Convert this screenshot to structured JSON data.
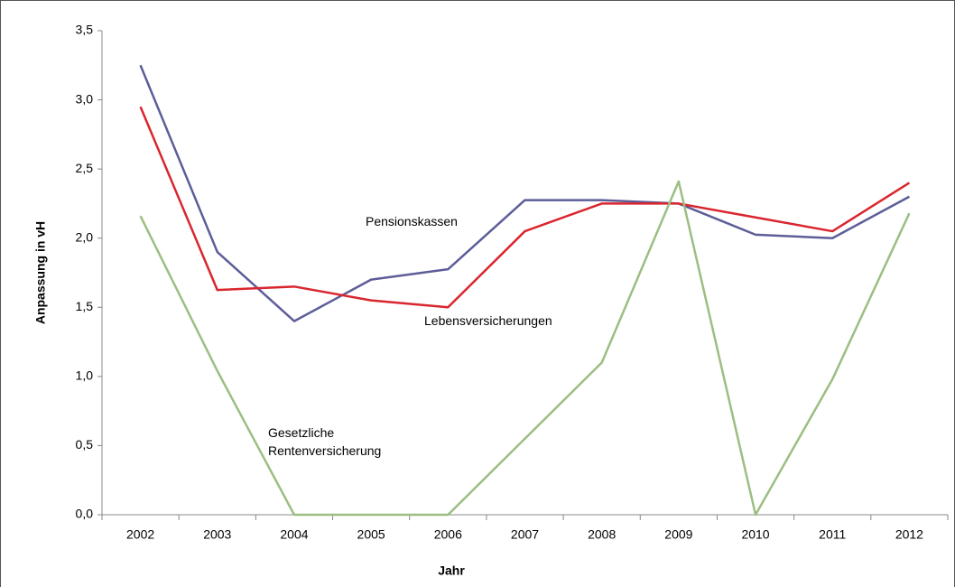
{
  "chart_data": {
    "type": "line",
    "x_label": "Jahr",
    "y_label": "Anpassung in vH",
    "categories": [
      "2002",
      "2003",
      "2004",
      "2005",
      "2006",
      "2007",
      "2008",
      "2009",
      "2010",
      "2011",
      "2012"
    ],
    "series": [
      {
        "name": "Pensionskassen",
        "color": "#5d5d99",
        "values": [
          3.25,
          1.9,
          1.4,
          1.7,
          1.775,
          2.275,
          2.275,
          2.25,
          2.025,
          2.0,
          2.3
        ]
      },
      {
        "name": "Lebensversicherungen",
        "color": "#d9262e",
        "values": [
          2.95,
          1.625,
          1.65,
          1.55,
          1.5,
          2.05,
          2.25,
          2.25,
          2.15,
          2.05,
          2.4
        ]
      },
      {
        "name": "Gesetzliche Rentenversicherung",
        "color": "#9cbe82",
        "values": [
          2.16,
          1.04,
          0,
          0,
          0,
          0.55,
          1.1,
          2.41,
          0,
          0.98,
          2.18
        ]
      }
    ],
    "ylim": [
      0,
      3.5
    ],
    "yticks": [
      {
        "value": 0,
        "label": "0,0"
      },
      {
        "value": 0.5,
        "label": "0,5"
      },
      {
        "value": 1,
        "label": "1,0"
      },
      {
        "value": 1.5,
        "label": "1,5"
      },
      {
        "value": 2,
        "label": "2,0"
      },
      {
        "value": 2.5,
        "label": "2,5"
      },
      {
        "value": 3,
        "label": "3,0"
      },
      {
        "value": 3.5,
        "label": "3,5"
      }
    ]
  }
}
